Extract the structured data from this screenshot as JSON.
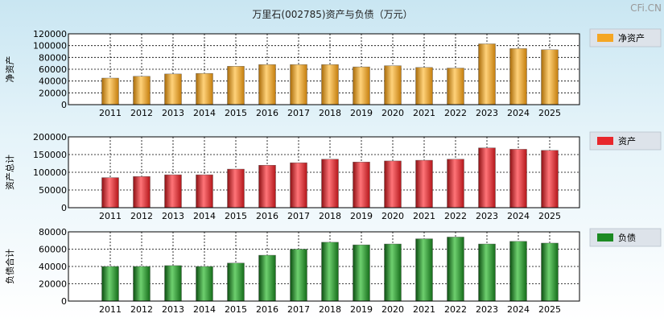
{
  "title": "万里石(002785)资产与负债（万元）",
  "watermark": "CFi.CN",
  "colors": {
    "net_assets": "#f5a623",
    "assets": "#e8262b",
    "liabilities": "#1c8a22",
    "legend_bg": "#dde3ea"
  },
  "chart_data": [
    {
      "type": "bar",
      "title": "",
      "ylabel": "净资产",
      "legend": "净资产",
      "legend_position": "right",
      "grid": true,
      "categories": [
        "2011",
        "2012",
        "2013",
        "2014",
        "2015",
        "2016",
        "2017",
        "2018",
        "2019",
        "2020",
        "2021",
        "2022",
        "2023",
        "2024",
        "2025"
      ],
      "values": [
        45000,
        48000,
        52000,
        53000,
        65000,
        68000,
        68000,
        68000,
        64000,
        66000,
        63000,
        62000,
        103000,
        95000,
        93000
      ],
      "ylim": [
        0,
        120000
      ],
      "yticks": [
        0,
        20000,
        40000,
        60000,
        80000,
        100000,
        120000
      ]
    },
    {
      "type": "bar",
      "title": "",
      "ylabel": "资产总计",
      "legend": "资产",
      "legend_position": "right",
      "grid": true,
      "categories": [
        "2011",
        "2012",
        "2013",
        "2014",
        "2015",
        "2016",
        "2017",
        "2018",
        "2019",
        "2020",
        "2021",
        "2022",
        "2023",
        "2024",
        "2025"
      ],
      "values": [
        85000,
        88000,
        93000,
        93000,
        109000,
        120000,
        127000,
        137000,
        129000,
        132000,
        134000,
        137000,
        169000,
        165000,
        162000
      ],
      "ylim": [
        0,
        200000
      ],
      "yticks": [
        0,
        50000,
        100000,
        150000,
        200000
      ]
    },
    {
      "type": "bar",
      "title": "",
      "ylabel": "负债合计",
      "legend": "负债",
      "legend_position": "right",
      "grid": true,
      "categories": [
        "2011",
        "2012",
        "2013",
        "2014",
        "2015",
        "2016",
        "2017",
        "2018",
        "2019",
        "2020",
        "2021",
        "2022",
        "2023",
        "2024",
        "2025"
      ],
      "values": [
        40000,
        40000,
        41000,
        40000,
        44000,
        53000,
        60000,
        68000,
        65000,
        66000,
        72000,
        74000,
        66000,
        69000,
        67000
      ],
      "ylim": [
        0,
        80000
      ],
      "yticks": [
        0,
        20000,
        40000,
        60000,
        80000
      ]
    }
  ]
}
